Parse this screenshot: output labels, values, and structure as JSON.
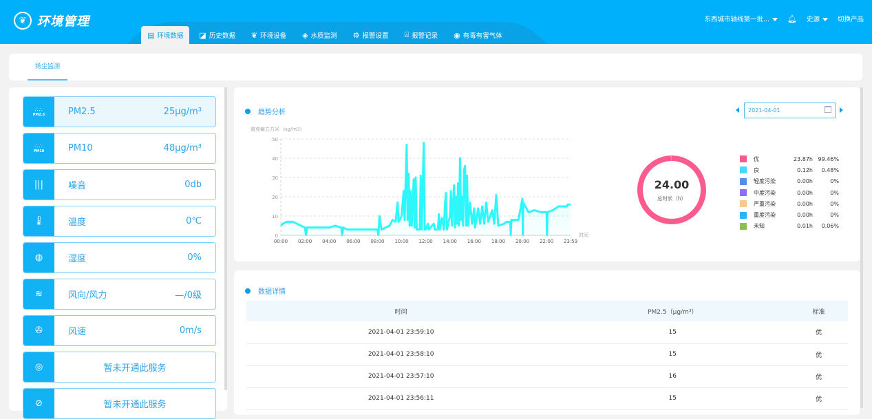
{
  "header": {
    "app_title": "环境管理",
    "org": "东西城市轴线第一批...",
    "user": "史源",
    "switch_product": "切换产品"
  },
  "nav": [
    {
      "label": "环境数据",
      "icon": "document-icon",
      "active": true
    },
    {
      "label": "历史数据",
      "icon": "chart-icon"
    },
    {
      "label": "环境设备",
      "icon": "leaf-icon"
    },
    {
      "label": "水质监测",
      "icon": "water-icon"
    },
    {
      "label": "报警设置",
      "icon": "gear-icon"
    },
    {
      "label": "报警记录",
      "icon": "alarm-icon"
    },
    {
      "label": "有毒有害气体",
      "icon": "gas-icon"
    }
  ],
  "subtabs": [
    {
      "label": "扬尘监测"
    }
  ],
  "sensors": [
    {
      "label": "PM2.5",
      "value": "25μg/m³",
      "icon": "pm25-icon",
      "icon_text": "PM2.5"
    },
    {
      "label": "PM10",
      "value": "48μg/m³",
      "icon": "pm10-icon",
      "icon_text": "PM10"
    },
    {
      "label": "噪音",
      "value": "0db",
      "icon": "sound-wave-icon"
    },
    {
      "label": "温度",
      "value": "0℃",
      "icon": "thermometer-icon"
    },
    {
      "label": "湿度",
      "value": "0%",
      "icon": "humidity-icon"
    },
    {
      "label": "风向/风力",
      "value": "—/0级",
      "icon": "wind-direction-icon"
    },
    {
      "label": "风速",
      "value": "0m/s",
      "icon": "fan-icon"
    },
    {
      "label": "暂未开通此服务",
      "icon": "service-icon"
    },
    {
      "label": "暂未开通此服务",
      "icon": "compass-icon"
    }
  ],
  "trend": {
    "title": "趋势分析",
    "date": "2021-04-01"
  },
  "chart_data": {
    "type": "area",
    "ylabel": "微克每立方米（ug/m3）",
    "xlabel": "时间",
    "ylim": [
      0,
      50
    ],
    "yticks": [
      0,
      10,
      20,
      30,
      40,
      50
    ],
    "xticks": [
      "00:00",
      "02:00",
      "04:00",
      "06:00",
      "08:00",
      "10:00",
      "12:00",
      "14:00",
      "16:00",
      "18:00",
      "20:00",
      "22:00",
      "23:59"
    ],
    "grid": true,
    "color": "#2ef7fb",
    "points": [
      [
        "00:00",
        5
      ],
      [
        "00:10",
        6
      ],
      [
        "00:30",
        7
      ],
      [
        "01:00",
        7
      ],
      [
        "01:20",
        6
      ],
      [
        "01:40",
        5
      ],
      [
        "02:00",
        4
      ],
      [
        "02:05",
        0
      ],
      [
        "02:10",
        4
      ],
      [
        "03:00",
        4
      ],
      [
        "04:00",
        4
      ],
      [
        "04:30",
        5
      ],
      [
        "05:00",
        4
      ],
      [
        "05:05",
        0
      ],
      [
        "05:10",
        4
      ],
      [
        "05:30",
        3
      ],
      [
        "07:00",
        3
      ],
      [
        "08:00",
        3
      ],
      [
        "08:05",
        0
      ],
      [
        "08:10",
        10
      ],
      [
        "08:20",
        3
      ],
      [
        "09:00",
        5
      ],
      [
        "09:15",
        8
      ],
      [
        "09:30",
        7
      ],
      [
        "09:40",
        17
      ],
      [
        "09:45",
        7
      ],
      [
        "10:00",
        10
      ],
      [
        "10:10",
        23
      ],
      [
        "10:15",
        8
      ],
      [
        "10:25",
        47
      ],
      [
        "10:30",
        8
      ],
      [
        "10:35",
        32
      ],
      [
        "10:40",
        5
      ],
      [
        "10:45",
        23
      ],
      [
        "10:50",
        5
      ],
      [
        "11:00",
        29
      ],
      [
        "11:05",
        4
      ],
      [
        "11:10",
        30
      ],
      [
        "11:15",
        3
      ],
      [
        "11:30",
        3
      ],
      [
        "11:35",
        31
      ],
      [
        "11:40",
        3
      ],
      [
        "11:50",
        48
      ],
      [
        "11:55",
        3
      ],
      [
        "12:00",
        3
      ],
      [
        "12:10",
        6
      ],
      [
        "12:15",
        3
      ],
      [
        "12:40",
        6
      ],
      [
        "12:45",
        3
      ],
      [
        "13:00",
        3
      ],
      [
        "13:05",
        11
      ],
      [
        "13:10",
        3
      ],
      [
        "13:20",
        9
      ],
      [
        "13:30",
        3
      ],
      [
        "13:35",
        15
      ],
      [
        "13:40",
        22
      ],
      [
        "13:45",
        3
      ],
      [
        "14:00",
        10
      ],
      [
        "14:05",
        23
      ],
      [
        "14:10",
        5
      ],
      [
        "14:20",
        26
      ],
      [
        "14:25",
        4
      ],
      [
        "14:30",
        20
      ],
      [
        "14:35",
        6
      ],
      [
        "14:40",
        27
      ],
      [
        "14:45",
        5
      ],
      [
        "14:50",
        40
      ],
      [
        "14:55",
        8
      ],
      [
        "15:00",
        20
      ],
      [
        "15:05",
        5
      ],
      [
        "15:10",
        34
      ],
      [
        "15:15",
        36
      ],
      [
        "15:20",
        5
      ],
      [
        "15:25",
        31
      ],
      [
        "15:30",
        5
      ],
      [
        "15:40",
        17
      ],
      [
        "15:50",
        6
      ],
      [
        "16:00",
        14
      ],
      [
        "16:05",
        4
      ],
      [
        "16:20",
        14
      ],
      [
        "16:30",
        6
      ],
      [
        "16:40",
        15
      ],
      [
        "16:50",
        6
      ],
      [
        "17:00",
        17
      ],
      [
        "17:10",
        7
      ],
      [
        "17:30",
        13
      ],
      [
        "17:40",
        6
      ],
      [
        "17:50",
        21
      ],
      [
        "18:00",
        5
      ],
      [
        "18:30",
        6
      ],
      [
        "18:40",
        7
      ],
      [
        "19:00",
        7
      ],
      [
        "19:02",
        0
      ],
      [
        "19:05",
        8
      ],
      [
        "19:40",
        8
      ],
      [
        "20:00",
        19
      ],
      [
        "20:02",
        0
      ],
      [
        "20:04",
        17
      ],
      [
        "20:30",
        12
      ],
      [
        "21:00",
        13
      ],
      [
        "21:30",
        12
      ],
      [
        "22:00",
        12
      ],
      [
        "22:02",
        0
      ],
      [
        "22:05",
        12
      ],
      [
        "22:30",
        13
      ],
      [
        "23:00",
        15
      ],
      [
        "23:40",
        15
      ],
      [
        "23:45",
        16
      ],
      [
        "23:59",
        16
      ]
    ]
  },
  "donut": {
    "total": "24.00",
    "label": "总时长（h）",
    "items": [
      {
        "name": "优",
        "hours": "23.87h",
        "pct": "99.46%",
        "value": 99.46,
        "color": "#fc5b8d"
      },
      {
        "name": "良",
        "hours": "0.12h",
        "pct": "0.48%",
        "value": 0.48,
        "color": "#43d8fd"
      },
      {
        "name": "轻度污染",
        "hours": "0.00h",
        "pct": "0%",
        "value": 0,
        "color": "#4e8ffd"
      },
      {
        "name": "中度污染",
        "hours": "0.00h",
        "pct": "0%",
        "value": 0,
        "color": "#8f6dfd"
      },
      {
        "name": "严重污染",
        "hours": "0.00h",
        "pct": "0%",
        "value": 0,
        "color": "#ffc984"
      },
      {
        "name": "重度污染",
        "hours": "0.00h",
        "pct": "0%",
        "value": 0,
        "color": "#26b5f7"
      },
      {
        "name": "未知",
        "hours": "0.01h",
        "pct": "0.06%",
        "value": 0.06,
        "color": "#8bc34a"
      }
    ]
  },
  "details": {
    "title": "数据详情",
    "columns": [
      "时间",
      "PM2.5（μg/m³）",
      "标准"
    ],
    "rows": [
      [
        "2021-04-01 23:59:10",
        "15",
        "优"
      ],
      [
        "2021-04-01 23:58:10",
        "15",
        "优"
      ],
      [
        "2021-04-01 23:57:10",
        "16",
        "优"
      ],
      [
        "2021-04-01 23:56:11",
        "15",
        "优"
      ]
    ]
  }
}
